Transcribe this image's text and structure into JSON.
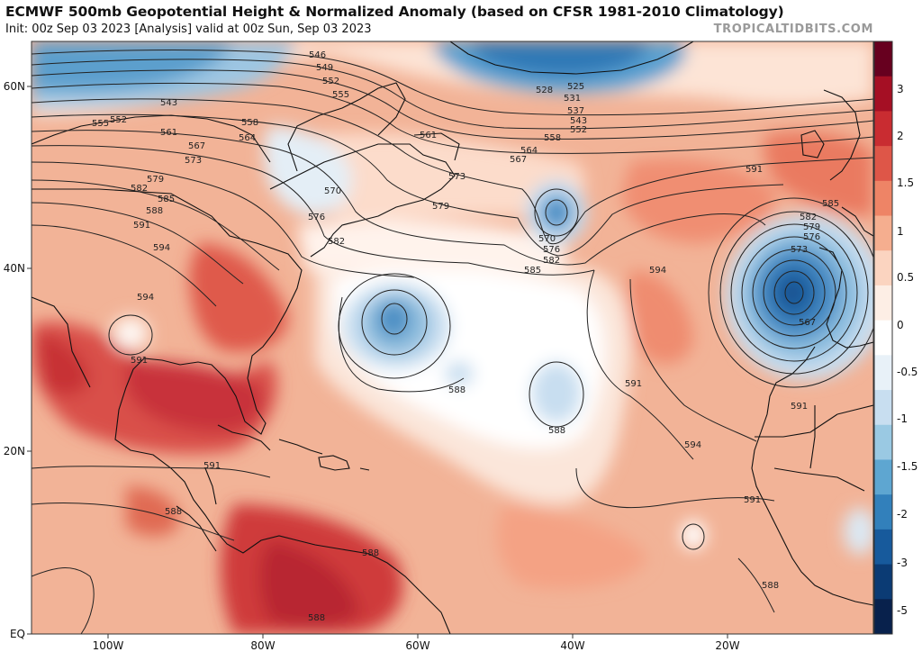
{
  "header": {
    "title": "ECMWF 500mb Geopotential Height & Normalized Anomaly (based on CFSR 1981-2010 Climatology)",
    "subtitle": "Init: 00z Sep 03 2023   [Analysis]   valid at 00z Sun, Sep 03 2023",
    "brand": "TROPICALTIDBITS.COM"
  },
  "map": {
    "lat_labels": [
      "60N",
      "40N",
      "20N",
      "EQ"
    ],
    "lon_labels": [
      "100W",
      "80W",
      "60W",
      "40W",
      "20W"
    ],
    "contour_labels": [
      "546",
      "549",
      "552",
      "555",
      "543",
      "555",
      "552",
      "561",
      "567",
      "573",
      "579",
      "582",
      "585",
      "588",
      "591",
      "594",
      "594",
      "591",
      "558",
      "564",
      "570",
      "576",
      "582",
      "561",
      "573",
      "579",
      "570",
      "576",
      "582",
      "585",
      "528",
      "525",
      "531",
      "537",
      "543",
      "552",
      "558",
      "564",
      "567",
      "591",
      "594",
      "591",
      "594",
      "588",
      "588",
      "591",
      "588",
      "588",
      "588",
      "591",
      "588",
      "582",
      "585",
      "579",
      "576",
      "573",
      "567",
      "591"
    ]
  },
  "colorbar": {
    "labels": [
      "3",
      "2",
      "1.5",
      "1",
      "0.5",
      "0",
      "-0.5",
      "-1",
      "-1.5",
      "-2",
      "-3",
      "-5"
    ],
    "colors": [
      "#67001f",
      "#a50f24",
      "#c92c31",
      "#de5648",
      "#ee8466",
      "#f5ae8f",
      "#fbd4c0",
      "#fdeee5",
      "#ffffff",
      "#e8f1f8",
      "#c8def0",
      "#9ac9e3",
      "#5ea6d1",
      "#3280bb",
      "#175a9c",
      "#0b3b74",
      "#08214c"
    ]
  }
}
